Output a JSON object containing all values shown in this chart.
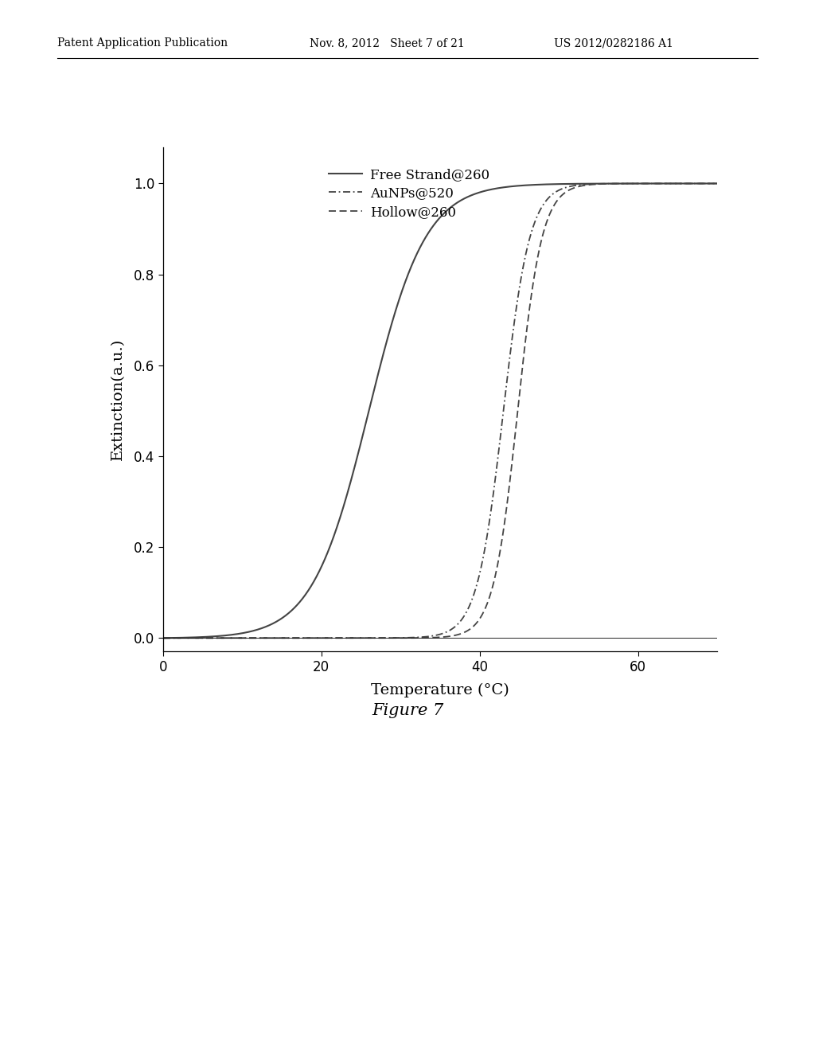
{
  "header_left": "Patent Application Publication",
  "header_mid": "Nov. 8, 2012   Sheet 7 of 21",
  "header_right": "US 2012/0282186 A1",
  "xlabel": "Temperature (°C)",
  "ylabel": "Extinction(a.u.)",
  "figure_caption": "Figure 7",
  "xlim": [
    0,
    70
  ],
  "ylim": [
    -0.03,
    1.08
  ],
  "xticks": [
    0,
    20,
    40,
    60
  ],
  "yticks": [
    0.0,
    0.2,
    0.4,
    0.6,
    0.8,
    1.0
  ],
  "curve1_label": "Free Strand@260",
  "curve1_color": "#444444",
  "curve1_midpoint": 26.0,
  "curve1_steepness": 0.28,
  "curve2_label": "AuNPs@520",
  "curve2_color": "#444444",
  "curve2_midpoint": 43.0,
  "curve2_steepness": 0.6,
  "curve3_label": "Hollow@260",
  "curve3_color": "#444444",
  "curve3_midpoint": 44.8,
  "curve3_steepness": 0.65,
  "background_color": "#ffffff",
  "header_fontsize": 10,
  "axis_label_fontsize": 14,
  "tick_fontsize": 12,
  "legend_fontsize": 12,
  "caption_fontsize": 15
}
